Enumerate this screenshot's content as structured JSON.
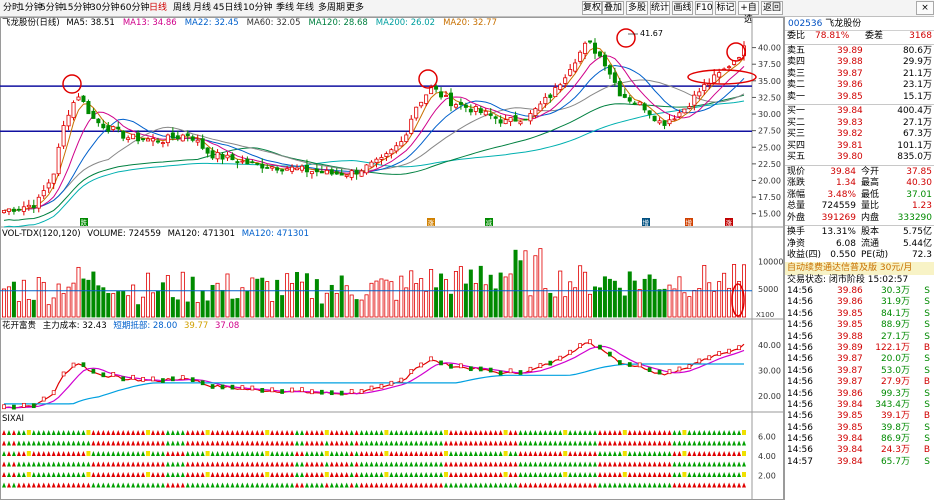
{
  "toolbar": {
    "timeframes": [
      "分时",
      "1分钟",
      "5分钟",
      "15分钟",
      "30分钟",
      "60分钟",
      "日线",
      "周线",
      "月线",
      "45日线",
      "10分钟",
      "季线",
      "年线",
      "多周期",
      "更多"
    ],
    "active_timeframe": "日线",
    "buttons": [
      "复权",
      "叠加",
      "多股",
      "统计",
      "画线",
      "F10",
      "标记",
      "+自选",
      "返回"
    ]
  },
  "main_chart": {
    "stock_label": "飞龙股份(日线)",
    "ma": [
      {
        "name": "MA5",
        "value": "38.51",
        "color": "#000000"
      },
      {
        "name": "MA13",
        "value": "34.86",
        "color": "#d0008a"
      },
      {
        "name": "MA22",
        "value": "32.45",
        "color": "#0060cc"
      },
      {
        "name": "MA60",
        "value": "32.05",
        "color": "#333333"
      },
      {
        "name": "MA120",
        "value": "28.68",
        "color": "#008040"
      },
      {
        "name": "MA200",
        "value": "26.02",
        "color": "#00a0a0"
      },
      {
        "name": "MA20",
        "value": "32.77",
        "color": "#c87000"
      }
    ],
    "y_ticks": [
      "40.00",
      "37.50",
      "35.00",
      "32.50",
      "30.00",
      "27.50",
      "25.00",
      "22.50",
      "20.00",
      "17.50",
      "15.00"
    ],
    "peak_label": "41.67",
    "event_marks": [
      "跌",
      "涨",
      "减",
      "增",
      "增",
      "涨"
    ]
  },
  "volume_chart": {
    "label": "VOL-TDX(120,120)",
    "volume": "VOLUME: 724559",
    "ma120a": "MA120: 471301",
    "ma120b": "MA120: 471301",
    "y_ticks": [
      "10000",
      "5000"
    ],
    "scale": "X100"
  },
  "flower_chart": {
    "label": "花开富贵",
    "cost": "主力成本: 32.43",
    "short": "短期抵部: 28.00",
    "val1": "39.77",
    "val2": "37.08",
    "y_ticks": [
      "40.00",
      "30.00",
      "20.00"
    ]
  },
  "signal_chart": {
    "label": "SIXAI",
    "y_ticks": [
      "6.00",
      "4.00",
      "2.00"
    ]
  },
  "quote": {
    "code": "002536",
    "name": "飞龙股份",
    "weibi_label": "委比",
    "weibi": "78.81%",
    "weicha_label": "委差",
    "weicha": "3168",
    "asks": [
      {
        "label": "卖五",
        "price": "39.89",
        "vol": "80.6万"
      },
      {
        "label": "卖四",
        "price": "39.88",
        "vol": "29.9万"
      },
      {
        "label": "卖三",
        "price": "39.87",
        "vol": "21.1万"
      },
      {
        "label": "卖二",
        "price": "39.86",
        "vol": "23.1万"
      },
      {
        "label": "卖一",
        "price": "39.85",
        "vol": "15.1万"
      }
    ],
    "bids": [
      {
        "label": "买一",
        "price": "39.84",
        "vol": "400.4万"
      },
      {
        "label": "买二",
        "price": "39.83",
        "vol": "27.1万"
      },
      {
        "label": "买三",
        "price": "39.82",
        "vol": "67.3万"
      },
      {
        "label": "买四",
        "price": "39.81",
        "vol": "101.1万"
      },
      {
        "label": "买五",
        "price": "39.80",
        "vol": "835.0万"
      }
    ],
    "stats": [
      {
        "l1": "现价",
        "v1": "39.84",
        "c1": "red",
        "l2": "今开",
        "v2": "37.85",
        "c2": "red"
      },
      {
        "l1": "涨跌",
        "v1": "1.34",
        "c1": "red",
        "l2": "最高",
        "v2": "40.30",
        "c2": "red"
      },
      {
        "l1": "涨幅",
        "v1": "3.48%",
        "c1": "red",
        "l2": "最低",
        "v2": "37.01",
        "c2": "green"
      },
      {
        "l1": "总量",
        "v1": "724559",
        "c1": "black",
        "l2": "量比",
        "v2": "1.23",
        "c2": "red"
      },
      {
        "l1": "外盘",
        "v1": "391269",
        "c1": "red",
        "l2": "内盘",
        "v2": "333290",
        "c2": "green"
      }
    ],
    "stats2": [
      {
        "l1": "换手",
        "v1": "13.31%",
        "l2": "股本",
        "v2": "5.75亿"
      },
      {
        "l1": "净资",
        "v1": "6.08",
        "l2": "流通",
        "v2": "5.44亿"
      },
      {
        "l1": "收益(四)",
        "v1": "0.550",
        "l2": "PE(动)",
        "v2": "72.3"
      }
    ],
    "promo": "自动续费通达信普及版  30元/月",
    "status": "交易状态: 闭市阶段 15:02:57",
    "trades": [
      {
        "t": "14:56",
        "p": "39.86",
        "v": "30.3万",
        "d": "S"
      },
      {
        "t": "14:56",
        "p": "39.86",
        "v": "31.9万",
        "d": "S"
      },
      {
        "t": "14:56",
        "p": "39.85",
        "v": "84.1万",
        "d": "S"
      },
      {
        "t": "14:56",
        "p": "39.85",
        "v": "88.9万",
        "d": "S"
      },
      {
        "t": "14:56",
        "p": "39.88",
        "v": "27.1万",
        "d": "S"
      },
      {
        "t": "14:56",
        "p": "39.89",
        "v": "122.1万",
        "d": "B"
      },
      {
        "t": "14:56",
        "p": "39.87",
        "v": "20.0万",
        "d": "S"
      },
      {
        "t": "14:56",
        "p": "39.87",
        "v": "53.0万",
        "d": "S"
      },
      {
        "t": "14:56",
        "p": "39.87",
        "v": "27.9万",
        "d": "B"
      },
      {
        "t": "14:56",
        "p": "39.86",
        "v": "99.3万",
        "d": "S"
      },
      {
        "t": "14:56",
        "p": "39.84",
        "v": "343.4万",
        "d": "S"
      },
      {
        "t": "14:56",
        "p": "39.85",
        "v": "39.1万",
        "d": "B"
      },
      {
        "t": "14:56",
        "p": "39.85",
        "v": "39.8万",
        "d": "S"
      },
      {
        "t": "14:56",
        "p": "39.84",
        "v": "86.9万",
        "d": "S"
      },
      {
        "t": "14:56",
        "p": "39.84",
        "v": "24.3万",
        "d": "B"
      },
      {
        "t": "14:57",
        "p": "39.84",
        "v": "65.7万",
        "d": "S"
      }
    ]
  },
  "colors": {
    "up": "#e00000",
    "down": "#008a00",
    "frame": "#9a9a9a"
  }
}
